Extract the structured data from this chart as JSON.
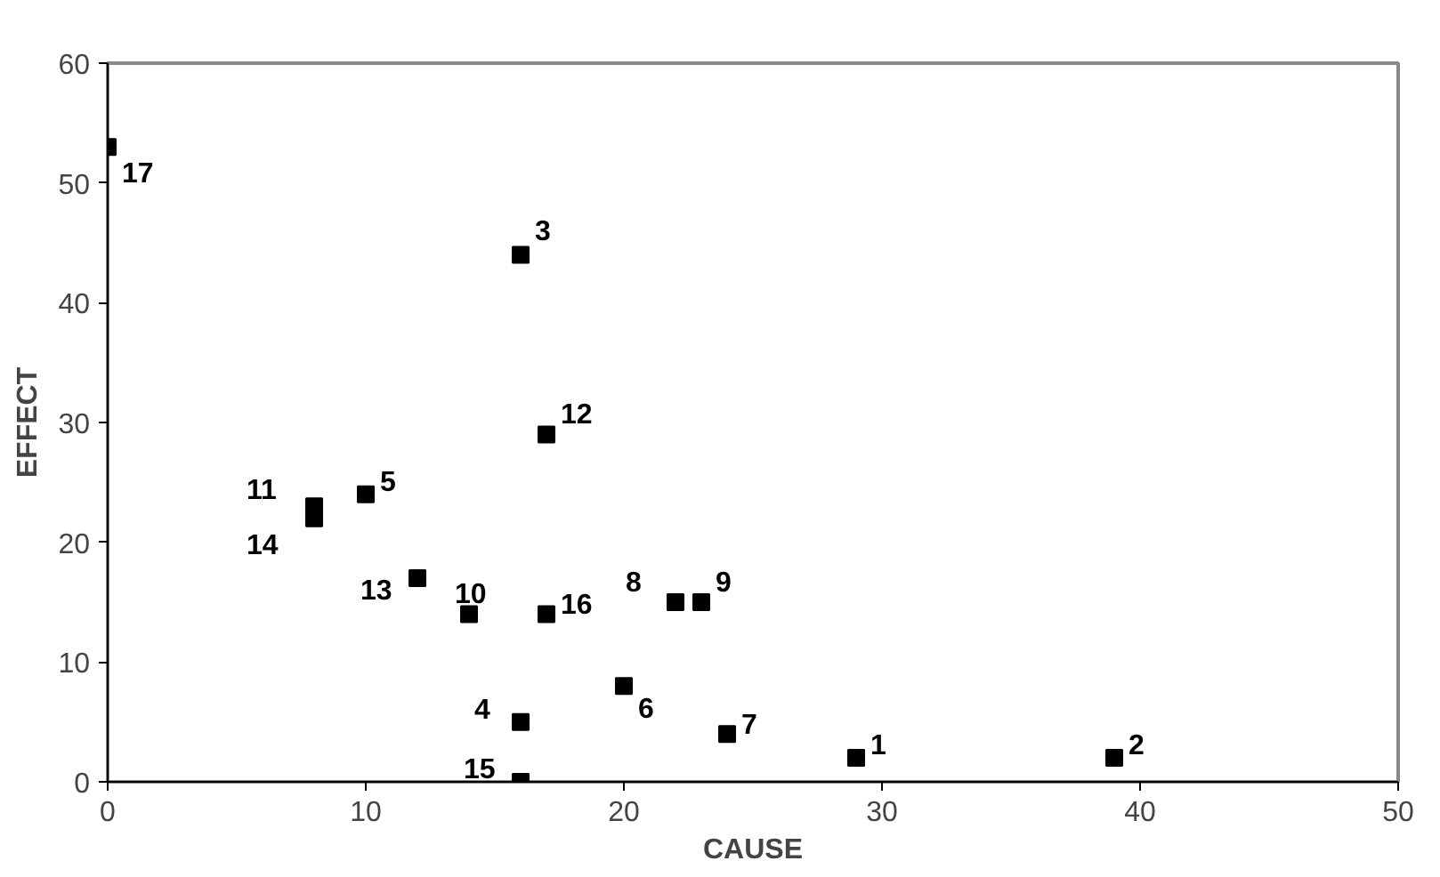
{
  "chart_data": {
    "type": "scatter",
    "xlabel": "CAUSE",
    "ylabel": "EFFECT",
    "xlim": [
      0,
      50
    ],
    "ylim": [
      0,
      60
    ],
    "xticks": [
      0,
      10,
      20,
      30,
      40,
      50
    ],
    "yticks": [
      0,
      10,
      20,
      30,
      40,
      50,
      60
    ],
    "grid": false,
    "marker": "square",
    "series": [
      {
        "color": "#000000",
        "x": [
          29,
          39,
          16,
          16,
          10,
          20,
          24,
          22,
          23,
          14,
          8,
          17,
          12,
          8,
          16,
          17,
          0
        ],
        "values": [
          2,
          2,
          44,
          5,
          24,
          8,
          4,
          15,
          15,
          14,
          23,
          29,
          17,
          22,
          0,
          14,
          53
        ]
      }
    ],
    "annotations": [
      {
        "text": "1",
        "x": 29,
        "y": 2
      },
      {
        "text": "2",
        "x": 39,
        "y": 2
      },
      {
        "text": "3",
        "x": 16,
        "y": 44
      },
      {
        "text": "4",
        "x": 16,
        "y": 5
      },
      {
        "text": "5",
        "x": 10,
        "y": 24
      },
      {
        "text": "6",
        "x": 20,
        "y": 8
      },
      {
        "text": "7",
        "x": 24,
        "y": 4
      },
      {
        "text": "8",
        "x": 22,
        "y": 15
      },
      {
        "text": "9",
        "x": 23,
        "y": 15
      },
      {
        "text": "10",
        "x": 14,
        "y": 14
      },
      {
        "text": "11",
        "x": 8,
        "y": 23
      },
      {
        "text": "12",
        "x": 17,
        "y": 29
      },
      {
        "text": "13",
        "x": 12,
        "y": 17
      },
      {
        "text": "14",
        "x": 8,
        "y": 22
      },
      {
        "text": "15",
        "x": 16,
        "y": 0
      },
      {
        "text": "16",
        "x": 17,
        "y": 14
      },
      {
        "text": "17",
        "x": 0,
        "y": 53
      }
    ]
  }
}
